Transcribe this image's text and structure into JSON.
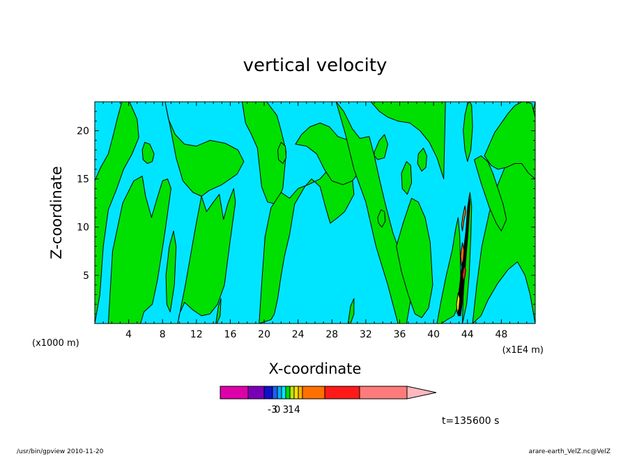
{
  "chart_data": {
    "type": "heatmap",
    "title": "vertical velocity",
    "xlabel": "X-coordinate",
    "ylabel": "Z-coordinate",
    "x_unit_left": "(x1000 m)",
    "x_unit_right": "(x1E4 m)",
    "xlim": [
      0,
      52
    ],
    "ylim": [
      0,
      23
    ],
    "x_ticks": [
      4,
      8,
      12,
      16,
      20,
      24,
      28,
      32,
      36,
      40,
      44,
      48
    ],
    "y_ticks": [
      5,
      10,
      15,
      20
    ],
    "background_color": "#00e5ff",
    "colorbar": {
      "colors": [
        "#dd00aa",
        "#7a00b8",
        "#1010c8",
        "#1f5ef5",
        "#00b0f0",
        "#00e5ff",
        "#00d800",
        "#b8e600",
        "#ffe000",
        "#ffb000",
        "#ff7000",
        "#ff1a1a",
        "#ff7b7b",
        "#ffb8c0"
      ],
      "labels": [
        "-3",
        "0",
        "3",
        "14"
      ],
      "label_boundaries": [
        3,
        4,
        6,
        8
      ]
    },
    "positive_regions": [
      {
        "color": "#00e000",
        "x": [
          0,
          0.7,
          1.6,
          2.2,
          2.7,
          3.2,
          4.1,
          5.0,
          5.2,
          4.4,
          3.4,
          2.6,
          1.6,
          1.0,
          0.6,
          0
        ],
        "z": [
          14.8,
          16.2,
          17.6,
          19.6,
          21.4,
          23,
          23,
          21.2,
          19.3,
          17.6,
          16.0,
          14.0,
          11.8,
          8.0,
          3.0,
          0
        ]
      },
      {
        "color": "#00e000",
        "x": [
          1.6,
          2.1,
          3.3,
          4.6,
          5.6,
          6.0,
          6.7,
          7.3,
          8.0,
          8.6,
          9.0,
          8.2,
          7.4,
          6.8,
          5.8,
          5.4
        ],
        "z": [
          0,
          7.5,
          12.5,
          14.8,
          15.3,
          13.2,
          11.0,
          12.8,
          14.8,
          15.0,
          14.0,
          9.0,
          4.5,
          2.0,
          1.2,
          0
        ]
      },
      {
        "color": "#00e000",
        "x": [
          8.3,
          8.7,
          9.5,
          10.6,
          12.0,
          13.6,
          15.4,
          16.9,
          17.6,
          16.8,
          15.0,
          13.5,
          12.6,
          11.6,
          10.4,
          9.6,
          9.0
        ],
        "z": [
          23,
          21.2,
          19.6,
          18.6,
          18.4,
          19.0,
          18.7,
          18.0,
          16.8,
          15.5,
          14.4,
          13.8,
          13.2,
          13.6,
          14.8,
          17.2,
          20.0
        ]
      },
      {
        "color": "#00e000",
        "x": [
          9.8,
          10.7,
          11.9,
          12.6,
          13.2,
          14.0,
          14.7,
          15.2,
          15.7,
          16.4,
          16.6,
          15.9,
          15.3,
          14.5,
          13.6,
          12.6,
          11.6,
          10.6,
          10.0
        ],
        "z": [
          0,
          4.0,
          10.0,
          13.2,
          11.6,
          12.6,
          13.4,
          10.8,
          12.4,
          14.0,
          12.6,
          8.0,
          4.0,
          2.0,
          1.0,
          0.8,
          1.4,
          2.2,
          1.0
        ]
      },
      {
        "color": "#00e000",
        "x": [
          17.4,
          17.8,
          18.5,
          19.2,
          19.7,
          20.4,
          21.4,
          22.2,
          22.6,
          22.0,
          21.5,
          20.8,
          20.3,
          19.2
        ],
        "z": [
          23,
          20.8,
          19.6,
          18.2,
          14.2,
          12.6,
          12.4,
          14.0,
          17.8,
          20.0,
          21.6,
          22.4,
          23,
          23
        ]
      },
      {
        "color": "#00e000",
        "x": [
          19.4,
          19.7,
          20.1,
          20.8,
          22.0,
          23.0,
          24.0,
          25.2,
          26.6,
          27.4,
          28.6,
          30.3,
          30.6,
          29.5,
          28.7,
          27.8,
          27.2,
          26.6,
          25.6,
          24.8,
          23.6,
          23.0,
          22.4,
          22.0,
          21.6,
          21.2,
          20.8
        ],
        "z": [
          0,
          4.0,
          9.0,
          12.0,
          13.6,
          13.0,
          14.0,
          14.4,
          15.0,
          15.8,
          16.8,
          16.0,
          13.4,
          11.6,
          11.0,
          10.4,
          12.2,
          14.2,
          15.0,
          14.2,
          12.4,
          9.2,
          7.0,
          5.0,
          2.6,
          1.0,
          0.4
        ]
      },
      {
        "color": "#00e000",
        "x": [
          23.7,
          24.4,
          25.4,
          26.6,
          27.7,
          28.7,
          30.0,
          31.3,
          32.0,
          31.5,
          30.4,
          29.3,
          28.0,
          27.1,
          26.2,
          25.0
        ],
        "z": [
          18.6,
          19.6,
          20.4,
          20.8,
          20.4,
          19.4,
          19.0,
          19.0,
          17.6,
          16.0,
          14.8,
          14.4,
          14.8,
          16.0,
          17.6,
          18.4
        ]
      },
      {
        "color": "#00e000",
        "x": [
          28.5,
          29.4,
          30.4,
          31.3,
          32.4,
          33.0,
          33.6,
          34.3,
          35.2,
          36.6,
          37.4,
          36.8,
          35.8,
          34.6,
          33.2,
          32.0,
          30.6,
          29.6
        ],
        "z": [
          23,
          22.0,
          20.2,
          19.2,
          19.4,
          17.4,
          15.0,
          12.4,
          9.4,
          6.0,
          3.0,
          0,
          0,
          4.0,
          8.0,
          12.6,
          16.0,
          19.6
        ]
      },
      {
        "color": "#00e000",
        "x": [
          32.6,
          33.6,
          34.6,
          35.8,
          37.2,
          38.4,
          39.5,
          40.4,
          41.2,
          41.4,
          40.0,
          38.4,
          37.0,
          36.0,
          35.0
        ],
        "z": [
          23,
          22.0,
          21.4,
          21.0,
          20.8,
          20.0,
          18.8,
          17.2,
          15.0,
          23,
          23,
          23,
          23,
          23,
          23
        ]
      },
      {
        "color": "#00e000",
        "x": [
          35.6,
          36.4,
          37.0,
          37.4,
          38.2,
          39.0,
          39.6,
          39.9,
          39.4,
          38.6,
          37.8,
          37.0,
          36.2
        ],
        "z": [
          8.0,
          10.4,
          12.0,
          13.0,
          12.6,
          11.0,
          8.4,
          4.0,
          1.6,
          0.6,
          1.0,
          3.0,
          5.4
        ]
      },
      {
        "color": "#00e000",
        "x": [
          40.4,
          40.9,
          41.5,
          42.2,
          42.6,
          42.9,
          43.1,
          43.2,
          43.0,
          42.4,
          41.6,
          40.9
        ],
        "z": [
          0,
          2.4,
          5.0,
          7.6,
          9.8,
          11.0,
          9.0,
          5.0,
          2.0,
          0.8,
          0.4,
          0
        ]
      },
      {
        "color": "#00e000",
        "x": [
          44.6,
          45.1,
          45.7,
          46.6,
          47.4,
          48.6,
          49.4,
          50.6,
          51.4,
          52,
          52,
          51.4,
          50.8,
          49.9,
          48.8,
          47.6,
          46.4,
          45.6
        ],
        "z": [
          0,
          4.0,
          8.0,
          11.6,
          14.0,
          16.6,
          18.4,
          19.6,
          20.6,
          23,
          0,
          3.0,
          5.0,
          6.4,
          5.6,
          4.2,
          2.4,
          0.8
        ]
      },
      {
        "color": "#00e000",
        "x": [
          46.0,
          46.6,
          47.2,
          48.0,
          48.8,
          49.6,
          50.4,
          51.0,
          51.6,
          52,
          52,
          51.2,
          50.4,
          49.6,
          48.6,
          47.6,
          46.8
        ],
        "z": [
          17.4,
          18.6,
          19.8,
          20.8,
          21.8,
          22.6,
          23,
          23,
          22.8,
          21.4,
          15.0,
          15.6,
          16.6,
          16.6,
          16.2,
          16.0,
          16.4
        ]
      },
      {
        "color": "#00e000",
        "x": [
          44.8,
          45.6,
          46.4,
          47.0,
          47.6,
          48.2,
          48.6,
          48.0,
          47.4,
          46.6,
          45.6
        ],
        "z": [
          17.0,
          17.4,
          16.8,
          15.6,
          14.0,
          12.4,
          10.8,
          9.6,
          10.4,
          12.0,
          14.6
        ]
      },
      {
        "color": "#00e000",
        "x": [
          43.4,
          43.9,
          44.2,
          44.4,
          44.5,
          44.3,
          44.0,
          43.7,
          43.5
        ],
        "z": [
          0,
          2.0,
          5.0,
          9.0,
          12.2,
          13.6,
          12.0,
          8.0,
          3.0
        ]
      },
      {
        "color": "#00e000",
        "x": [
          43.7,
          44.0,
          44.3,
          44.5,
          44.6,
          44.4,
          44.0,
          43.7,
          43.5
        ],
        "z": [
          21.6,
          22.8,
          23,
          22.6,
          20.4,
          18.0,
          16.8,
          18.0,
          20.0
        ]
      },
      {
        "color": "#00e000",
        "x": [
          36.2,
          36.8,
          37.3,
          37.4,
          36.9,
          36.3
        ],
        "z": [
          15.6,
          16.8,
          16.4,
          14.6,
          13.4,
          14.0
        ]
      },
      {
        "color": "#00e000",
        "x": [
          38.2,
          38.8,
          39.2,
          39.1,
          38.6,
          38.1
        ],
        "z": [
          17.6,
          18.2,
          17.4,
          16.2,
          15.8,
          16.6
        ]
      },
      {
        "color": "#00e000",
        "x": [
          33.0,
          33.6,
          34.2,
          34.6,
          34.2,
          33.4,
          33.0
        ],
        "z": [
          17.8,
          19.0,
          19.6,
          18.6,
          17.2,
          17.0,
          17.4
        ]
      },
      {
        "color": "#00e000",
        "x": [
          8.4,
          8.8,
          9.3,
          9.6,
          9.4,
          8.9,
          8.5
        ],
        "z": [
          5.0,
          8.0,
          9.6,
          8.0,
          4.0,
          1.2,
          2.0
        ]
      },
      {
        "color": "#00e000",
        "x": [
          14.3,
          14.6,
          14.9,
          14.8,
          14.4,
          14.2
        ],
        "z": [
          0,
          1.8,
          2.6,
          0.8,
          0,
          0
        ]
      },
      {
        "color": "#00e000",
        "x": [
          29.9,
          30.2,
          30.6,
          30.6,
          30.2,
          29.9
        ],
        "z": [
          0,
          1.8,
          2.6,
          1.0,
          0,
          0
        ]
      },
      {
        "color": "#00e000",
        "x": [
          5.6,
          5.9,
          6.5,
          7.0,
          6.8,
          6.2,
          5.7
        ],
        "z": [
          18.0,
          18.8,
          18.6,
          17.6,
          16.8,
          16.6,
          17.0
        ]
      },
      {
        "color": "#00e000",
        "x": [
          21.6,
          22.0,
          22.5,
          22.6,
          22.2,
          21.7
        ],
        "z": [
          18.0,
          18.8,
          18.4,
          17.2,
          16.6,
          17.0
        ]
      },
      {
        "color": "#00e000",
        "x": [
          33.4,
          33.8,
          34.2,
          34.3,
          33.9,
          33.5
        ],
        "z": [
          11.0,
          11.8,
          11.6,
          10.6,
          10.0,
          10.4
        ]
      },
      {
        "color": "#000000",
        "x": [
          43.2,
          43.5,
          43.8,
          44.1,
          44.3,
          44.2,
          44.0,
          43.6,
          43.3,
          43.0,
          42.8,
          42.9
        ],
        "z": [
          0.8,
          3.0,
          6.5,
          9.8,
          12.6,
          13.2,
          11.0,
          8.0,
          5.6,
          3.4,
          1.6,
          0.8
        ]
      },
      {
        "color": "#ff7000",
        "x": [
          43.4,
          43.6,
          43.8,
          43.7,
          43.5,
          43.3
        ],
        "z": [
          9.6,
          10.8,
          11.6,
          12.2,
          11.4,
          10.2
        ]
      },
      {
        "color": "#ff7000",
        "x": [
          43.3,
          43.5,
          43.6,
          43.4,
          43.2
        ],
        "z": [
          6.0,
          6.6,
          7.6,
          8.4,
          7.0
        ]
      },
      {
        "color": "#ffe000",
        "x": [
          42.8,
          43.0,
          43.1,
          42.9,
          42.7
        ],
        "z": [
          1.0,
          1.6,
          2.6,
          3.2,
          2.0
        ]
      },
      {
        "color": "#ff1a1a",
        "x": [
          43.5,
          43.7,
          43.8,
          43.6,
          43.4
        ],
        "z": [
          4.4,
          4.8,
          5.6,
          6.0,
          5.0
        ]
      }
    ],
    "time_label": "t=135600 s"
  },
  "footer": {
    "left": "/usr/bin/gpview  2010-11-20",
    "right": "arare-earth_VelZ.nc@VelZ"
  }
}
